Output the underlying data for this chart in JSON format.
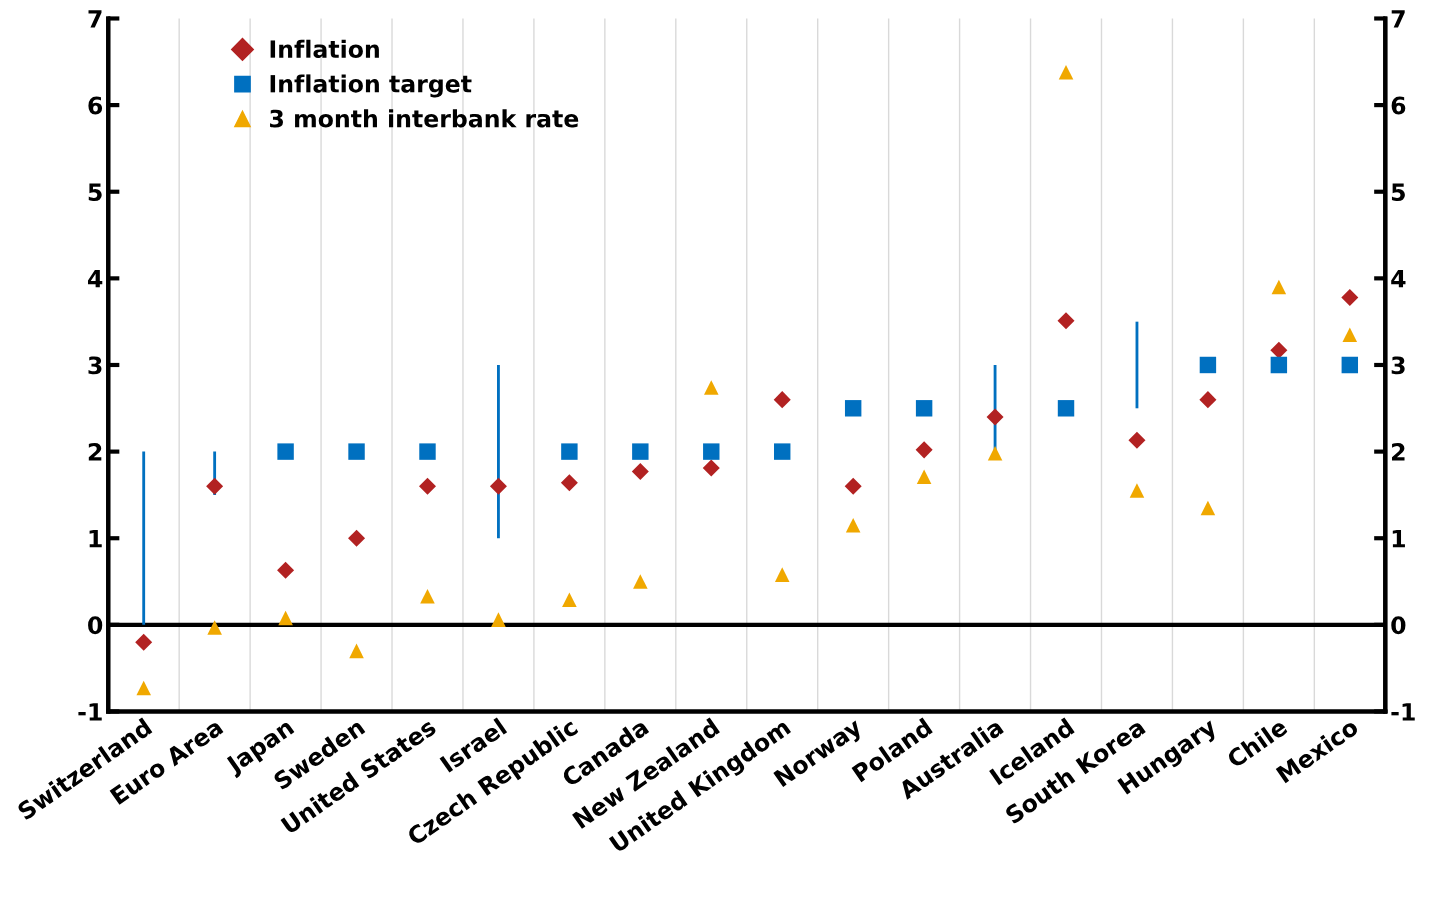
{
  "chart_data": {
    "type": "scatter",
    "categories": [
      "Switzerland",
      "Euro Area",
      "Japan",
      "Sweden",
      "United States",
      "Israel",
      "Czech Republic",
      "Canada",
      "New Zealand",
      "United Kingdom",
      "Norway",
      "Poland",
      "Australia",
      "Iceland",
      "South Korea",
      "Hungary",
      "Chile",
      "Mexico"
    ],
    "series": [
      {
        "name": "Inflation",
        "color": "#b22222",
        "marker": "diamond",
        "values": [
          -0.2,
          1.6,
          0.63,
          1.0,
          1.6,
          1.6,
          1.64,
          1.77,
          1.81,
          2.6,
          1.6,
          2.02,
          2.4,
          3.51,
          2.13,
          2.6,
          3.17,
          3.78
        ]
      },
      {
        "name": "Inflation target",
        "color": "#0070c0",
        "marker": "square",
        "values": [
          null,
          null,
          2,
          2,
          2,
          null,
          2,
          2,
          2,
          2,
          2.5,
          2.5,
          null,
          2.5,
          null,
          3,
          3,
          3
        ]
      },
      {
        "name": "3 month interbank rate",
        "color": "#f0a800",
        "marker": "triangle",
        "values": [
          -0.73,
          -0.03,
          0.08,
          -0.3,
          0.33,
          0.06,
          0.29,
          0.5,
          2.74,
          0.58,
          1.15,
          1.71,
          1.98,
          6.38,
          1.55,
          1.35,
          3.9,
          3.35
        ]
      },
      {
        "type": "bar",
        "color": "#0070c0",
        "base": [
          0,
          1.5,
          null,
          null,
          null,
          1,
          null,
          null,
          null,
          null,
          null,
          null,
          2,
          null,
          2.5,
          null,
          null,
          null
        ],
        "values": [
          2,
          0.5,
          null,
          null,
          null,
          2,
          null,
          null,
          null,
          null,
          null,
          null,
          1,
          null,
          1,
          null,
          null,
          null
        ]
      }
    ],
    "ylim": [
      -1,
      7
    ],
    "yticks": [
      -1,
      0,
      1,
      2,
      3,
      4,
      5,
      6,
      7
    ],
    "y2lim": [
      -1,
      7
    ],
    "y2ticks": [
      -1,
      0,
      1,
      2,
      3,
      4,
      5,
      6,
      7
    ],
    "ref_lines": [
      {
        "axis": "y",
        "value": 0,
        "color": "#000000"
      }
    ],
    "grid": "x",
    "legend": "top left"
  }
}
